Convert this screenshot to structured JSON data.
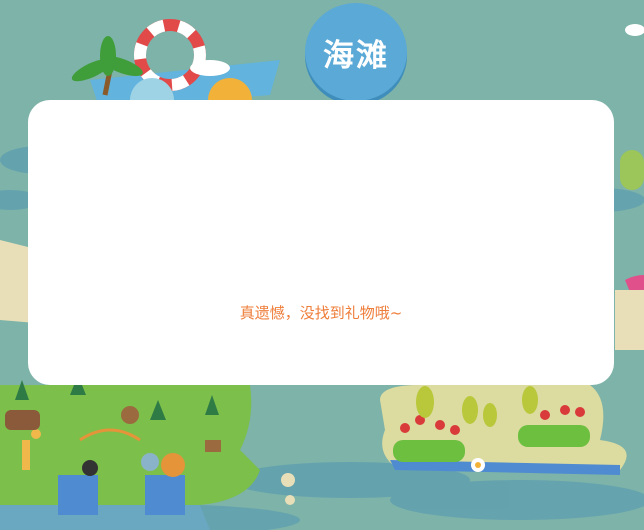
{
  "badge": {
    "label": "海滩"
  },
  "modal": {
    "message": "真遗憾，没找到礼物哦~"
  },
  "colors": {
    "background": "#7db3a8",
    "water": "#5f9fb0",
    "badge": "#5aa9d6",
    "message": "#ef7d3a",
    "island": "#7cbf4a"
  }
}
